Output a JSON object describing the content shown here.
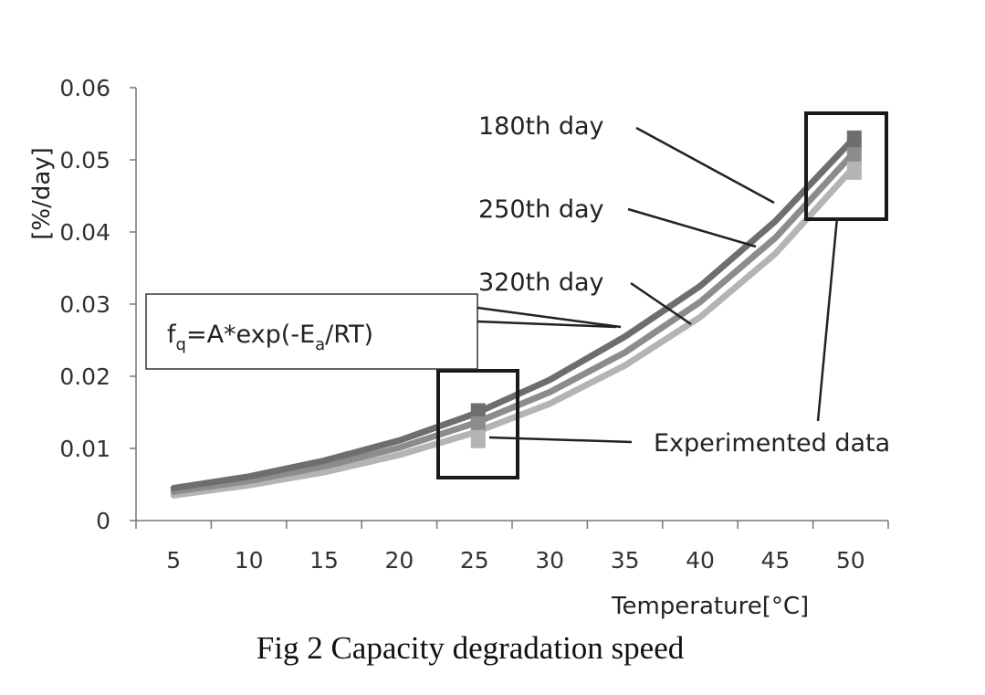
{
  "caption": "Fig 2 Capacity degradation speed",
  "chart_data": {
    "type": "line",
    "xlabel": "Temperature[°C]",
    "ylabel": "[%/day]",
    "x": [
      5,
      10,
      15,
      20,
      25,
      30,
      35,
      40,
      45,
      50
    ],
    "ylim": [
      0,
      0.06
    ],
    "yticks": [
      "0",
      "0.01",
      "0.02",
      "0.03",
      "0.04",
      "0.05",
      "0.06"
    ],
    "xticks": [
      "5",
      "10",
      "15",
      "20",
      "25",
      "30",
      "35",
      "40",
      "45",
      "50"
    ],
    "grid": false,
    "series": [
      {
        "name": "180th day",
        "color": "#6e6e6e",
        "values": [
          0.0045,
          0.0061,
          0.0083,
          0.0111,
          0.0148,
          0.0195,
          0.0255,
          0.0325,
          0.0415,
          0.0525
        ]
      },
      {
        "name": "250th day",
        "color": "#8c8c8c",
        "values": [
          0.004,
          0.0055,
          0.0075,
          0.0101,
          0.0135,
          0.0178,
          0.0233,
          0.0303,
          0.0392,
          0.0505
        ]
      },
      {
        "name": "320th day",
        "color": "#b4b4b4",
        "values": [
          0.0035,
          0.0049,
          0.0067,
          0.0091,
          0.0122,
          0.0162,
          0.0215,
          0.0282,
          0.037,
          0.0485
        ]
      }
    ],
    "experimental": {
      "label": "Experimented data",
      "points": [
        {
          "x": 25,
          "y": 0.015,
          "color": "#6e6e6e"
        },
        {
          "x": 25,
          "y": 0.0132,
          "color": "#8c8c8c"
        },
        {
          "x": 25,
          "y": 0.0113,
          "color": "#b4b4b4"
        },
        {
          "x": 50,
          "y": 0.0528,
          "color": "#6e6e6e"
        },
        {
          "x": 50,
          "y": 0.0505,
          "color": "#8c8c8c"
        },
        {
          "x": 50,
          "y": 0.0485,
          "color": "#b4b4b4"
        }
      ]
    },
    "formula": {
      "f": "f",
      "f_sub": "q",
      "mid": "=A*exp(-E",
      "e_sub": "a",
      "end": "/RT)"
    }
  }
}
